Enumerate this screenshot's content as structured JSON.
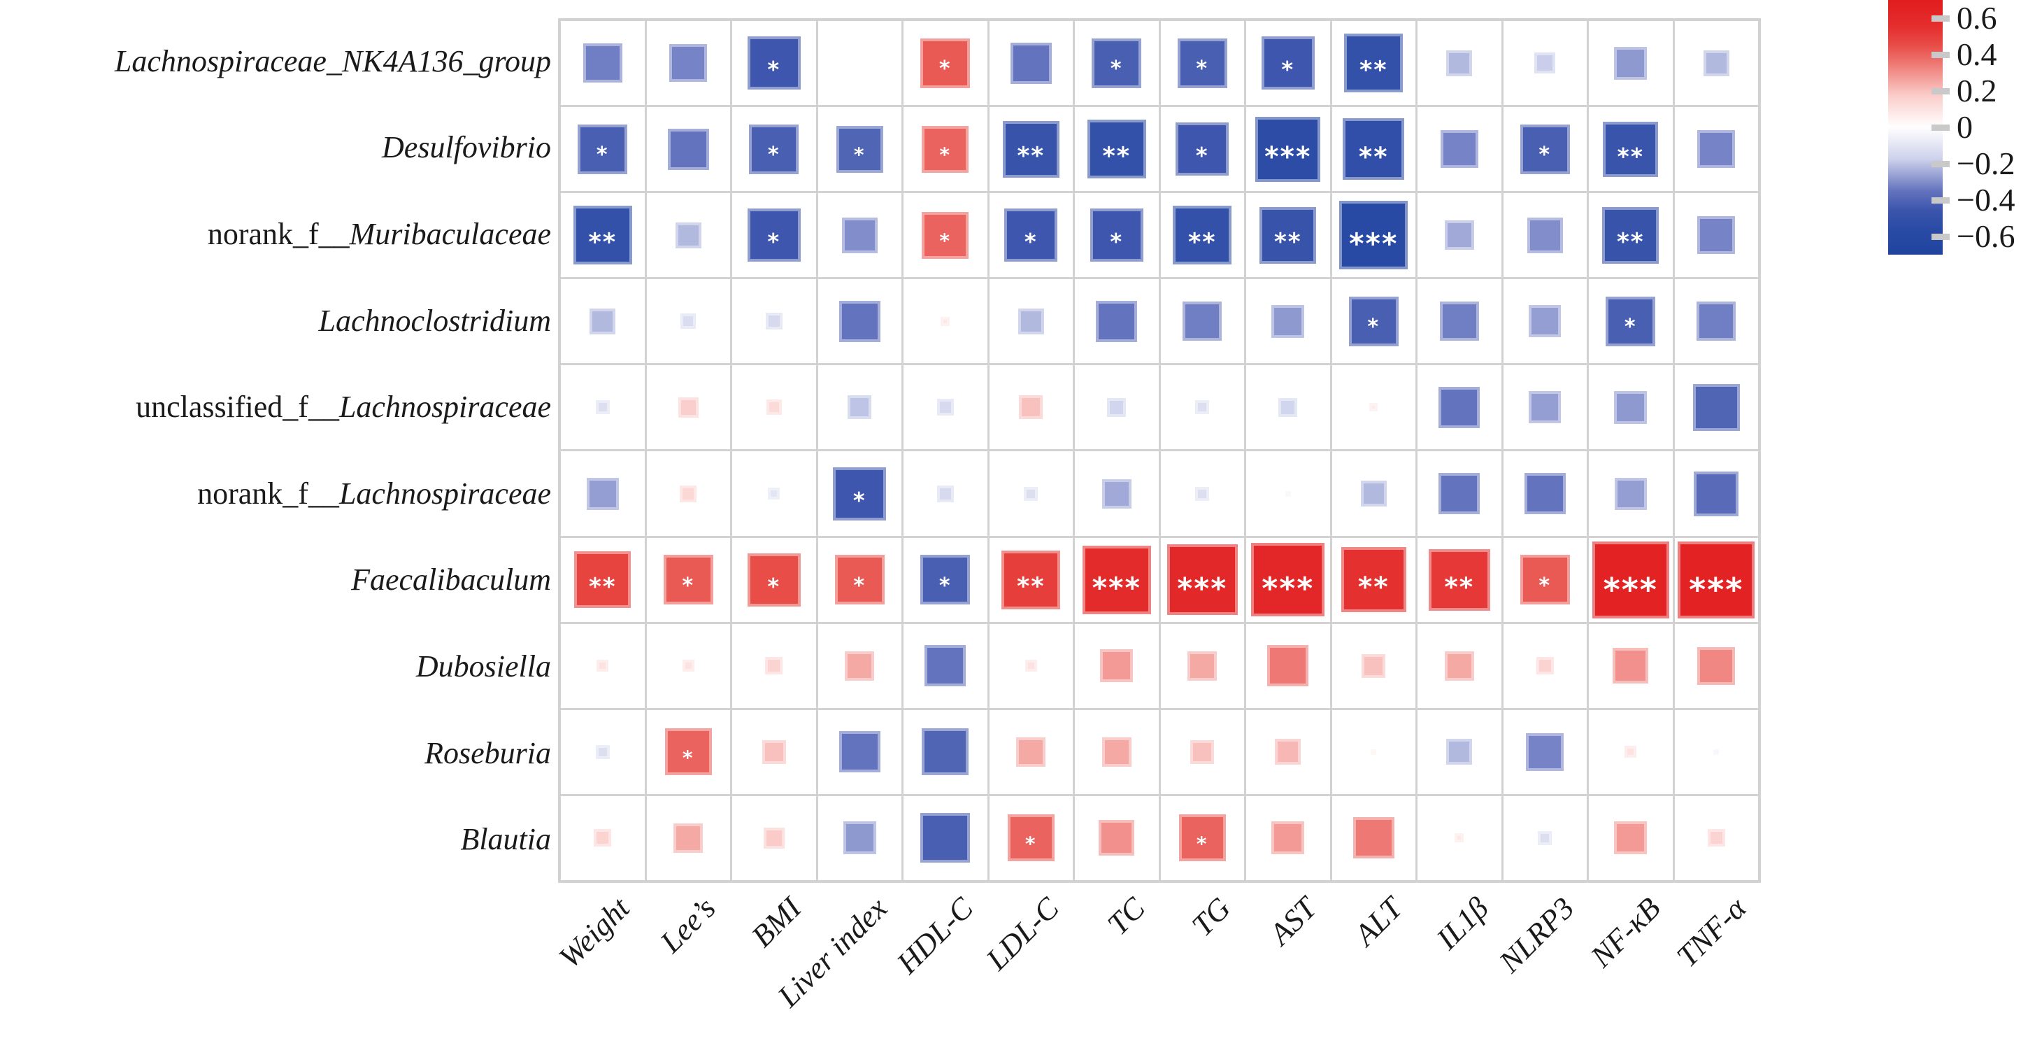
{
  "chart_data": {
    "type": "heatmap",
    "title": "",
    "description": "Correlation matrix (corrplot square style): gut microbiota genera vs physiological / biochemical / inflammatory indices. Square size and color encode correlation r; asterisks mark significance.",
    "rows": [
      {
        "prefix": "",
        "name": "Lachnospiraceae_NK4A136_group"
      },
      {
        "prefix": "",
        "name": "Desulfovibrio"
      },
      {
        "prefix": "norank_f__",
        "name": "Muribaculaceae"
      },
      {
        "prefix": "",
        "name": "Lachnoclostridium"
      },
      {
        "prefix": "unclassified_f__",
        "name": "Lachnospiraceae"
      },
      {
        "prefix": "norank_f__",
        "name": "Lachnospiraceae"
      },
      {
        "prefix": "",
        "name": "Faecalibaculum"
      },
      {
        "prefix": "",
        "name": "Dubosiella"
      },
      {
        "prefix": "",
        "name": "Roseburia"
      },
      {
        "prefix": "",
        "name": "Blautia"
      }
    ],
    "columns": [
      "Weight",
      "Lee’s",
      "BMI",
      "Liver index",
      "HDL-C",
      "LDL-C",
      "TC",
      "TG",
      "AST",
      "ALT",
      "IL1β",
      "NLRP3",
      "NF-κB",
      "TNF-α"
    ],
    "values": [
      [
        -0.33,
        -0.32,
        -0.45,
        0.0,
        0.42,
        -0.35,
        -0.42,
        -0.42,
        -0.45,
        -0.5,
        -0.22,
        -0.18,
        -0.28,
        -0.22
      ],
      [
        -0.42,
        -0.35,
        -0.42,
        -0.4,
        0.4,
        -0.48,
        -0.5,
        -0.45,
        -0.55,
        -0.52,
        -0.32,
        -0.42,
        -0.47,
        -0.32
      ],
      [
        -0.5,
        -0.22,
        -0.45,
        -0.3,
        0.4,
        -0.45,
        -0.45,
        -0.5,
        -0.48,
        -0.58,
        -0.25,
        -0.3,
        -0.48,
        -0.32
      ],
      [
        -0.22,
        -0.13,
        -0.14,
        -0.35,
        0.08,
        -0.22,
        -0.35,
        -0.33,
        -0.28,
        -0.42,
        -0.33,
        -0.27,
        -0.42,
        -0.33
      ],
      [
        -0.12,
        0.17,
        0.13,
        -0.2,
        -0.14,
        0.2,
        -0.16,
        -0.12,
        -0.16,
        0.07,
        -0.35,
        -0.27,
        -0.28,
        -0.4
      ],
      [
        -0.27,
        0.14,
        -0.1,
        -0.45,
        -0.14,
        -0.12,
        -0.25,
        -0.12,
        -0.04,
        -0.22,
        -0.35,
        -0.35,
        -0.27,
        -0.38
      ],
      [
        0.48,
        0.42,
        0.45,
        0.42,
        -0.42,
        0.5,
        0.58,
        0.6,
        0.62,
        0.55,
        0.52,
        0.42,
        0.65,
        0.65
      ],
      [
        0.1,
        0.1,
        0.15,
        0.25,
        -0.35,
        0.1,
        0.28,
        0.25,
        0.35,
        0.2,
        0.25,
        0.15,
        0.3,
        0.32
      ],
      [
        -0.12,
        0.4,
        0.2,
        -0.35,
        -0.4,
        0.25,
        0.25,
        0.2,
        0.22,
        0.05,
        -0.22,
        -0.32,
        0.1,
        -0.05
      ],
      [
        0.15,
        0.25,
        0.18,
        -0.28,
        -0.42,
        0.4,
        0.3,
        0.4,
        0.28,
        0.35,
        0.08,
        -0.12,
        0.28,
        0.15
      ]
    ],
    "significance": [
      [
        "",
        "",
        "*",
        "",
        "*",
        "",
        "*",
        "*",
        "*",
        "**",
        "",
        "",
        "",
        ""
      ],
      [
        "*",
        "",
        "*",
        "*",
        "*",
        "**",
        "**",
        "*",
        "***",
        "**",
        "",
        "*",
        "**",
        ""
      ],
      [
        "**",
        "",
        "*",
        "",
        "*",
        "*",
        "*",
        "**",
        "**",
        "***",
        "",
        "",
        "**",
        ""
      ],
      [
        "",
        "",
        "",
        "",
        "",
        "",
        "",
        "",
        "",
        "*",
        "",
        "",
        "*",
        ""
      ],
      [
        "",
        "",
        "",
        "",
        "",
        "",
        "",
        "",
        "",
        "",
        "",
        "",
        "",
        ""
      ],
      [
        "",
        "",
        "",
        "*",
        "",
        "",
        "",
        "",
        "",
        "",
        "",
        "",
        "",
        ""
      ],
      [
        "**",
        "*",
        "*",
        "*",
        "*",
        "**",
        "***",
        "***",
        "***",
        "**",
        "**",
        "*",
        "***",
        "***"
      ],
      [
        "",
        "",
        "",
        "",
        "",
        "",
        "",
        "",
        "",
        "",
        "",
        "",
        "",
        ""
      ],
      [
        "",
        "*",
        "",
        "",
        "",
        "",
        "",
        "",
        "",
        "",
        "",
        "",
        "",
        ""
      ],
      [
        "",
        "",
        "",
        "",
        "",
        "*",
        "",
        "*",
        "",
        "",
        "",
        "",
        "",
        ""
      ]
    ],
    "value_range": [
      -0.7,
      0.7
    ],
    "legend_ticks": [
      "0.6",
      "0.4",
      "0.2",
      "0",
      "−0.2",
      "−0.4",
      "−0.6"
    ],
    "layout": {
      "grid_on": true,
      "legend_position": "right"
    },
    "colors": {
      "positive_max": "#e11c1e",
      "zero": "#ffffff",
      "negative_max": "#20449e",
      "gridline": "#d2d2d2"
    }
  }
}
